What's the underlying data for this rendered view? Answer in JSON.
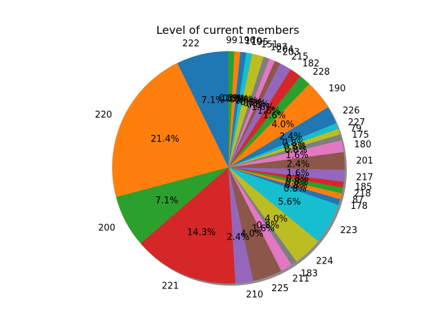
{
  "chart_data": {
    "type": "pie",
    "title": "Level of current members",
    "start_angle_deg": 90,
    "direction": "counterclockwise",
    "shadow": true,
    "slices": [
      {
        "label": "222",
        "value": 7.1,
        "pct": "7.1%"
      },
      {
        "label": "220",
        "value": 21.4,
        "pct": "21.4%"
      },
      {
        "label": "200",
        "value": 7.1,
        "pct": "7.1%"
      },
      {
        "label": "221",
        "value": 14.3,
        "pct": "14.3%"
      },
      {
        "label": "210",
        "value": 2.4,
        "pct": "2.4%"
      },
      {
        "label": "225",
        "value": 4.0,
        "pct": "4.0%"
      },
      {
        "label": "211",
        "value": 1.6,
        "pct": "1.6%"
      },
      {
        "label": "183",
        "value": 0.8,
        "pct": "0.8%"
      },
      {
        "label": "224",
        "value": 4.0,
        "pct": "4.0%"
      },
      {
        "label": "223",
        "value": 5.6,
        "pct": "5.6%"
      },
      {
        "label": "178",
        "value": 0.8,
        "pct": "0.8%"
      },
      {
        "label": "87",
        "value": 0.8,
        "pct": "0.8%"
      },
      {
        "label": "218",
        "value": 0.8,
        "pct": "0.8%"
      },
      {
        "label": "185",
        "value": 0.8,
        "pct": "0.8%"
      },
      {
        "label": "217",
        "value": 1.6,
        "pct": "1.6%"
      },
      {
        "label": "201",
        "value": 2.4,
        "pct": "2.4%"
      },
      {
        "label": "180",
        "value": 1.6,
        "pct": "1.6%"
      },
      {
        "label": "175",
        "value": 0.8,
        "pct": "0.8%"
      },
      {
        "label": "79",
        "value": 0.8,
        "pct": "0.8%"
      },
      {
        "label": "227",
        "value": 0.8,
        "pct": "0.8%"
      },
      {
        "label": "226",
        "value": 2.4,
        "pct": "2.4%"
      },
      {
        "label": "190",
        "value": 4.0,
        "pct": "4.0%"
      },
      {
        "label": "228",
        "value": 1.6,
        "pct": "1.6%"
      },
      {
        "label": "182",
        "value": 1.6,
        "pct": "1.6%"
      },
      {
        "label": "215",
        "value": 1.6,
        "pct": "1.6%"
      },
      {
        "label": "203",
        "value": 0.8,
        "pct": "0.8%"
      },
      {
        "label": "204",
        "value": 0.8,
        "pct": "0.8%"
      },
      {
        "label": "187",
        "value": 0.8,
        "pct": "0.8%"
      },
      {
        "label": "151",
        "value": 1.6,
        "pct": "1.6%"
      },
      {
        "label": "195",
        "value": 0.8,
        "pct": "0.8%"
      },
      {
        "label": "170",
        "value": 0.8,
        "pct": "0.8%"
      },
      {
        "label": "196",
        "value": 0.8,
        "pct": "0.8%"
      },
      {
        "label": "99",
        "value": 0.8,
        "pct": "0.8%"
      }
    ],
    "colors": [
      "#1f77b4",
      "#ff7f0e",
      "#2ca02c",
      "#d62728",
      "#9467bd",
      "#8c564b",
      "#e377c2",
      "#7f7f7f",
      "#bcbd22",
      "#17becf"
    ]
  }
}
